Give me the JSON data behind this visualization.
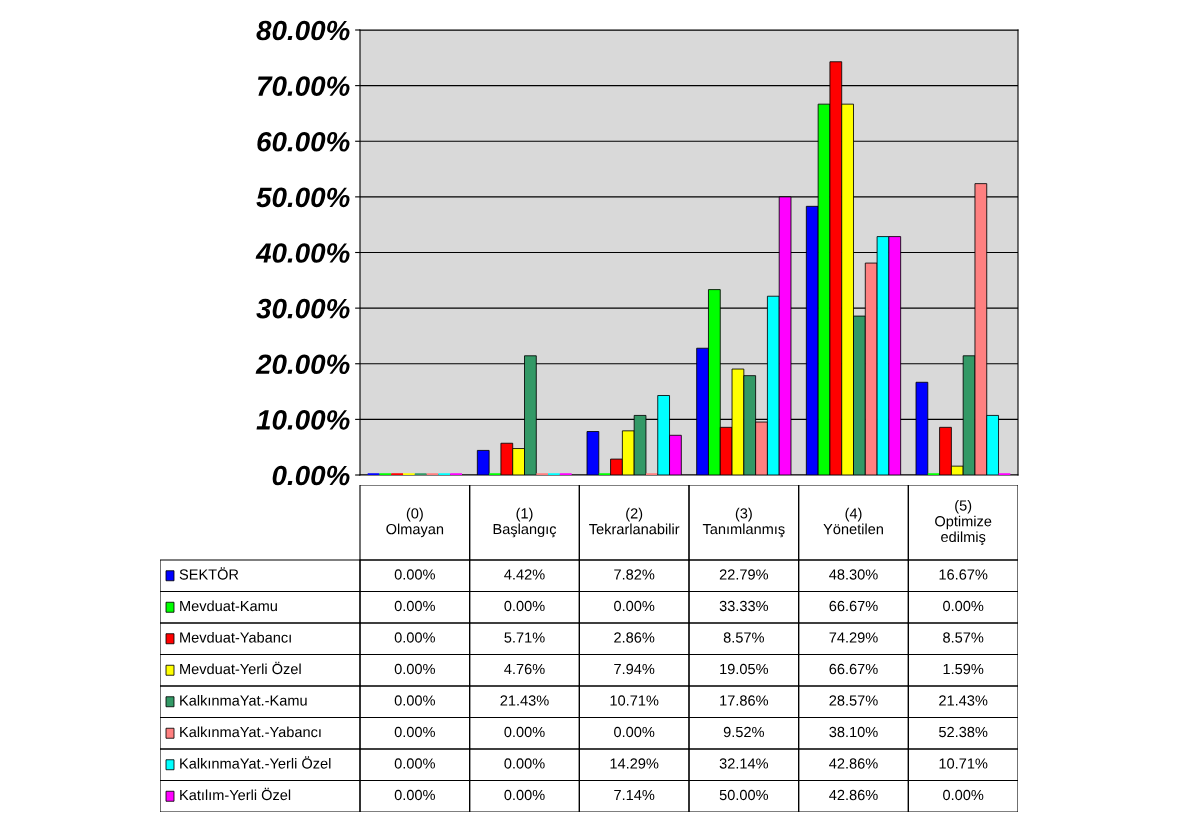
{
  "chart_data": {
    "type": "bar",
    "categories": [
      "(0)\nOlmayan",
      "(1)\nBaşlangıç",
      "(2)\nTekrarlanabilir",
      "(3)\nTanımlanmış",
      "(4)\nYönetilen",
      "(5)\nOptimize\nedilmiş"
    ],
    "ylim": [
      0,
      80
    ],
    "yticks": [
      {
        "value": 0,
        "label": "0.00%"
      },
      {
        "value": 10,
        "label": "10.00%"
      },
      {
        "value": 20,
        "label": "20.00%"
      },
      {
        "value": 30,
        "label": "30.00%"
      },
      {
        "value": 40,
        "label": "40.00%"
      },
      {
        "value": 50,
        "label": "50.00%"
      },
      {
        "value": 60,
        "label": "60.00%"
      },
      {
        "value": 70,
        "label": "70.00%"
      },
      {
        "value": 80,
        "label": "80.00%"
      }
    ],
    "grid": "y",
    "legend": "bottom",
    "series": [
      {
        "name": "SEKTÖR",
        "color": "#0000ff",
        "values": [
          0,
          4.42,
          7.82,
          22.79,
          48.3,
          16.67
        ],
        "value_labels": [
          "0.00%",
          "4.42%",
          "7.82%",
          "22.79%",
          "48.30%",
          "16.67%"
        ]
      },
      {
        "name": "Mevduat-Kamu",
        "color": "#00ff00",
        "values": [
          0,
          0,
          0,
          33.33,
          66.67,
          0
        ],
        "value_labels": [
          "0.00%",
          "0.00%",
          "0.00%",
          "33.33%",
          "66.67%",
          "0.00%"
        ]
      },
      {
        "name": "Mevduat-Yabancı",
        "color": "#ff0000",
        "values": [
          0,
          5.71,
          2.86,
          8.57,
          74.29,
          8.57
        ],
        "value_labels": [
          "0.00%",
          "5.71%",
          "2.86%",
          "8.57%",
          "74.29%",
          "8.57%"
        ]
      },
      {
        "name": "Mevduat-Yerli Özel",
        "color": "#ffff00",
        "values": [
          0,
          4.76,
          7.94,
          19.05,
          66.67,
          1.59
        ],
        "value_labels": [
          "0.00%",
          "4.76%",
          "7.94%",
          "19.05%",
          "66.67%",
          "1.59%"
        ]
      },
      {
        "name": "KalkınmaYat.-Kamu",
        "color": "#339966",
        "values": [
          0,
          21.43,
          10.71,
          17.86,
          28.57,
          21.43
        ],
        "value_labels": [
          "0.00%",
          "21.43%",
          "10.71%",
          "17.86%",
          "28.57%",
          "21.43%"
        ]
      },
      {
        "name": "KalkınmaYat.-Yabancı",
        "color": "#ff8080",
        "values": [
          0,
          0,
          0,
          9.52,
          38.1,
          52.38
        ],
        "value_labels": [
          "0.00%",
          "0.00%",
          "0.00%",
          "9.52%",
          "38.10%",
          "52.38%"
        ]
      },
      {
        "name": "KalkınmaYat.-Yerli Özel",
        "color": "#00ffff",
        "values": [
          0,
          0,
          14.29,
          32.14,
          42.86,
          10.71
        ],
        "value_labels": [
          "0.00%",
          "0.00%",
          "14.29%",
          "32.14%",
          "42.86%",
          "10.71%"
        ]
      },
      {
        "name": "Katılım-Yerli Özel",
        "color": "#ff00ff",
        "values": [
          0,
          0,
          7.14,
          50,
          42.86,
          0
        ],
        "value_labels": [
          "0.00%",
          "0.00%",
          "7.14%",
          "50.00%",
          "42.86%",
          "0.00%"
        ]
      }
    ]
  }
}
